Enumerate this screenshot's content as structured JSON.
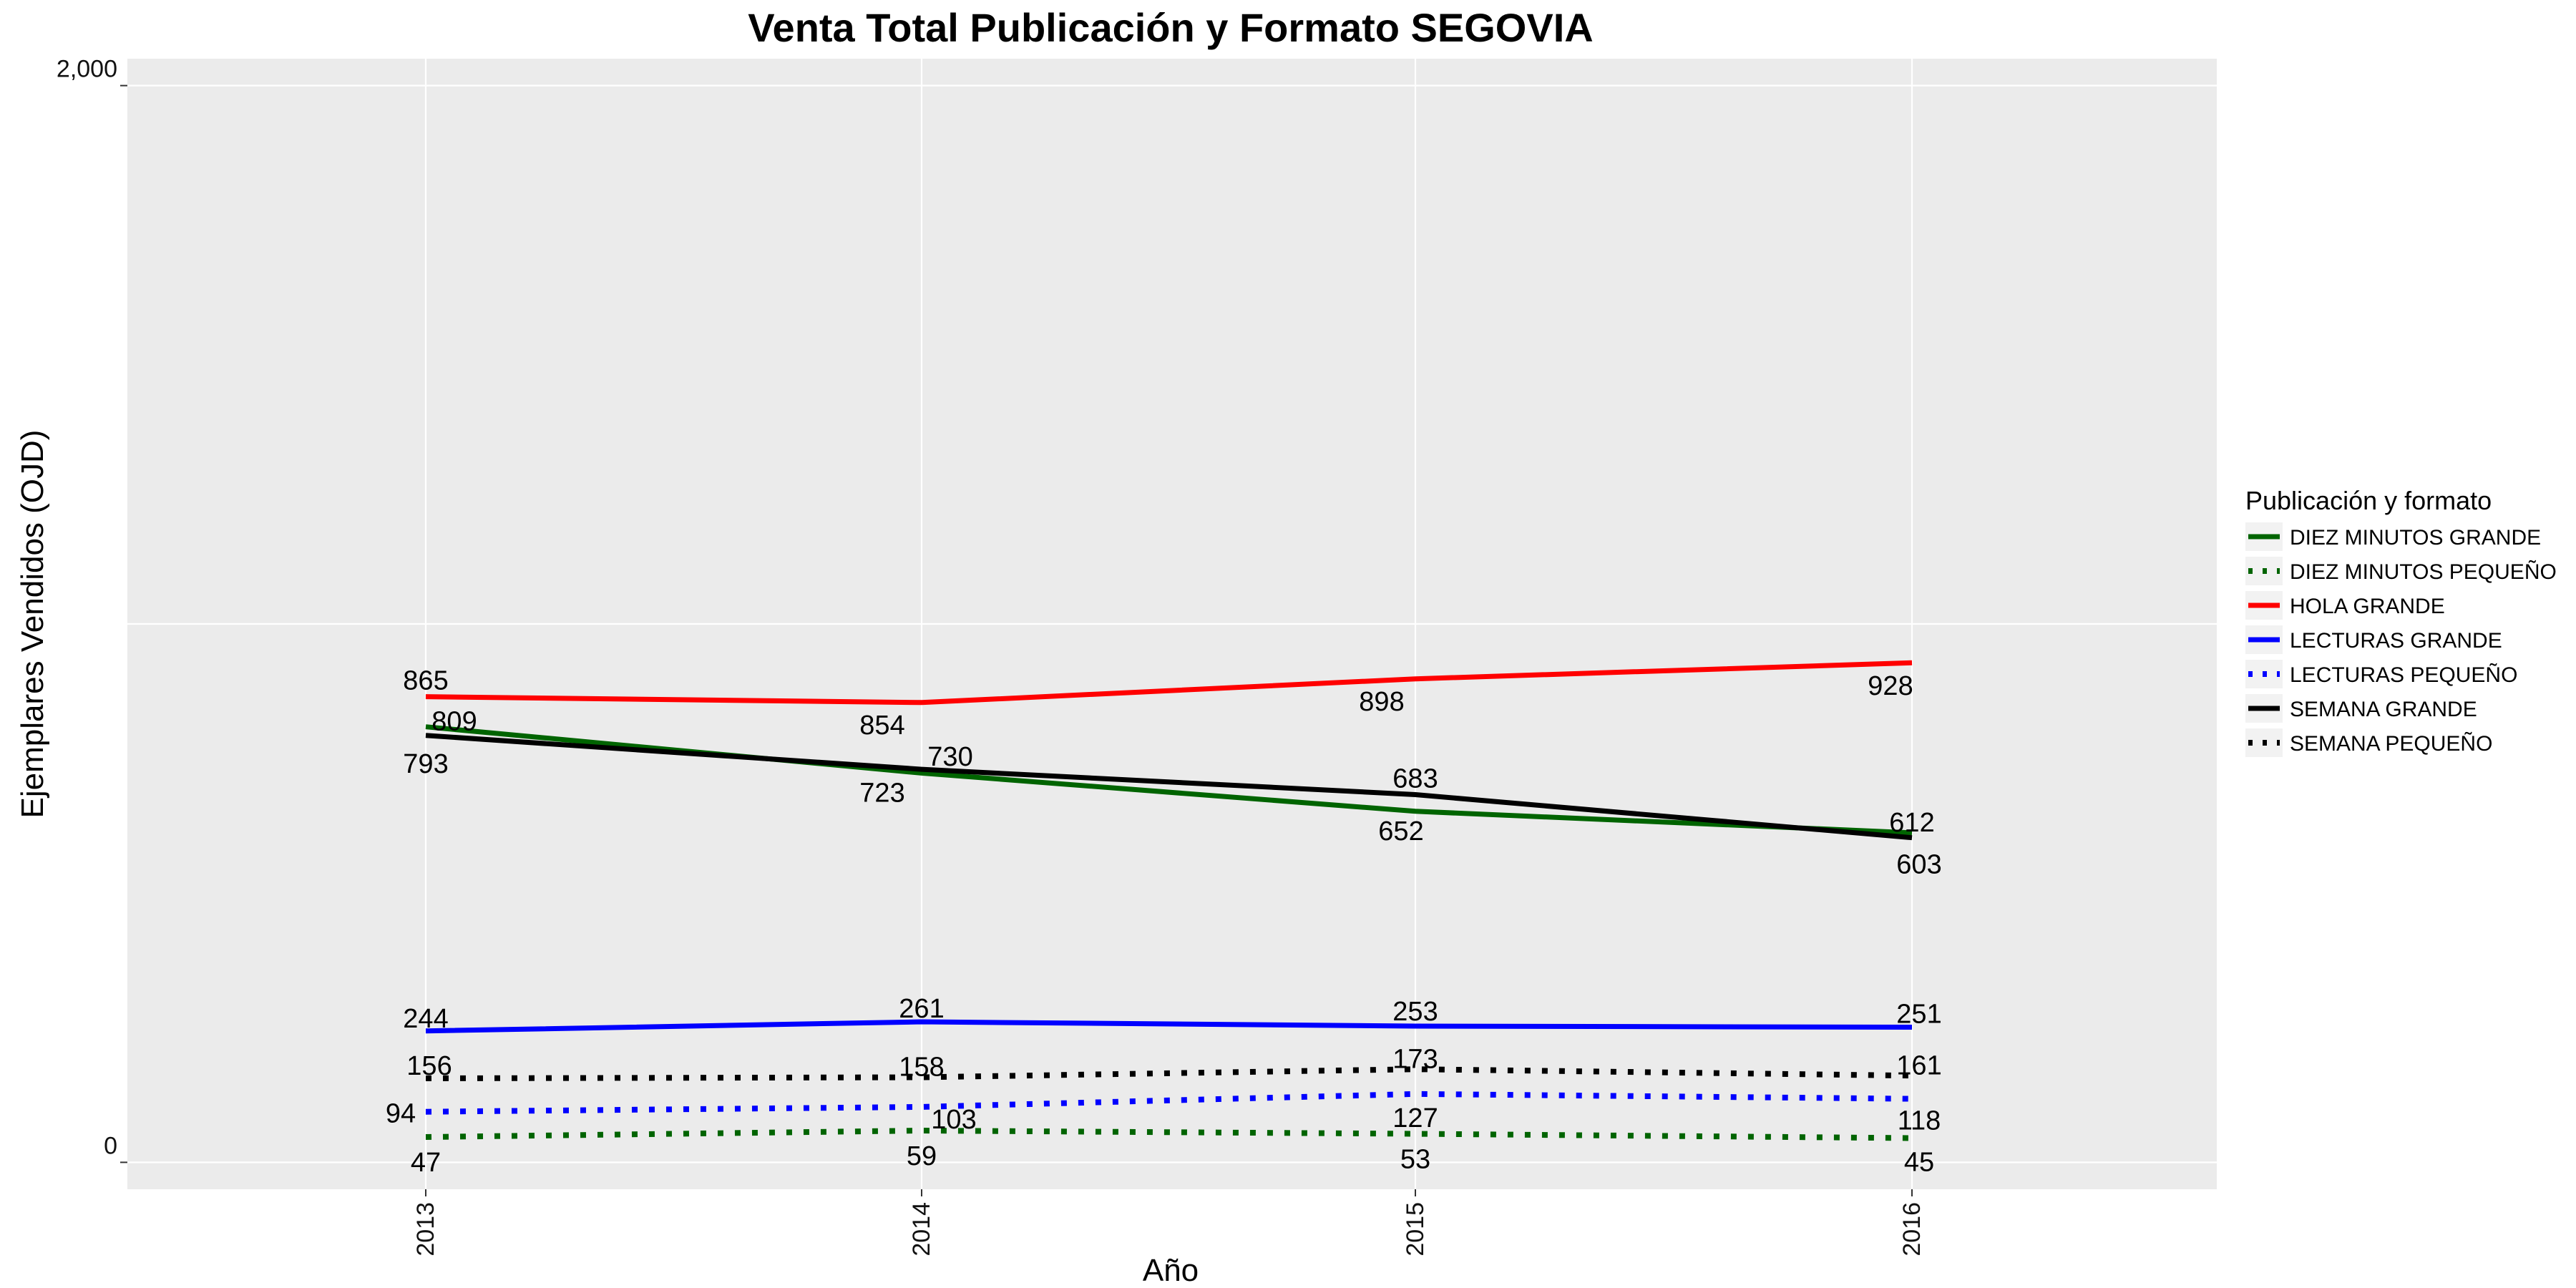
{
  "chart_data": {
    "type": "line",
    "title": "Venta Total Publicación y Formato  SEGOVIA",
    "xlabel": "Año",
    "ylabel": "Ejemplares Vendidos (OJD)",
    "x": [
      "2013",
      "2014",
      "2015",
      "2016"
    ],
    "ylim": [
      -50,
      2050
    ],
    "yticks": [
      {
        "value": 0,
        "label": "0"
      },
      {
        "value": 2000,
        "label": "2,000"
      }
    ],
    "ygrid_values": [
      0,
      1000,
      2000
    ],
    "grid": true,
    "legend": {
      "title": "Publicación y formato",
      "position": "right"
    },
    "series": [
      {
        "name": "DIEZ MINUTOS GRANDE",
        "color": "#006400",
        "dash": "solid",
        "values": [
          809,
          723,
          652,
          612
        ]
      },
      {
        "name": "DIEZ MINUTOS PEQUEÑO",
        "color": "#006400",
        "dash": "dotted",
        "values": [
          47,
          59,
          53,
          45
        ]
      },
      {
        "name": "HOLA GRANDE",
        "color": "#ff0000",
        "dash": "solid",
        "values": [
          865,
          854,
          898,
          928
        ]
      },
      {
        "name": "LECTURAS GRANDE",
        "color": "#0000ff",
        "dash": "solid",
        "values": [
          244,
          261,
          253,
          251
        ]
      },
      {
        "name": "LECTURAS PEQUEÑO",
        "color": "#0000ff",
        "dash": "dotted",
        "values": [
          94,
          103,
          127,
          118
        ]
      },
      {
        "name": "SEMANA GRANDE",
        "color": "#000000",
        "dash": "solid",
        "values": [
          793,
          730,
          683,
          603
        ]
      },
      {
        "name": "SEMANA PEQUEÑO",
        "color": "#000000",
        "dash": "dotted",
        "values": [
          156,
          158,
          173,
          161
        ]
      }
    ],
    "background_color": "#ebebeb",
    "grid_color": "#ffffff"
  }
}
